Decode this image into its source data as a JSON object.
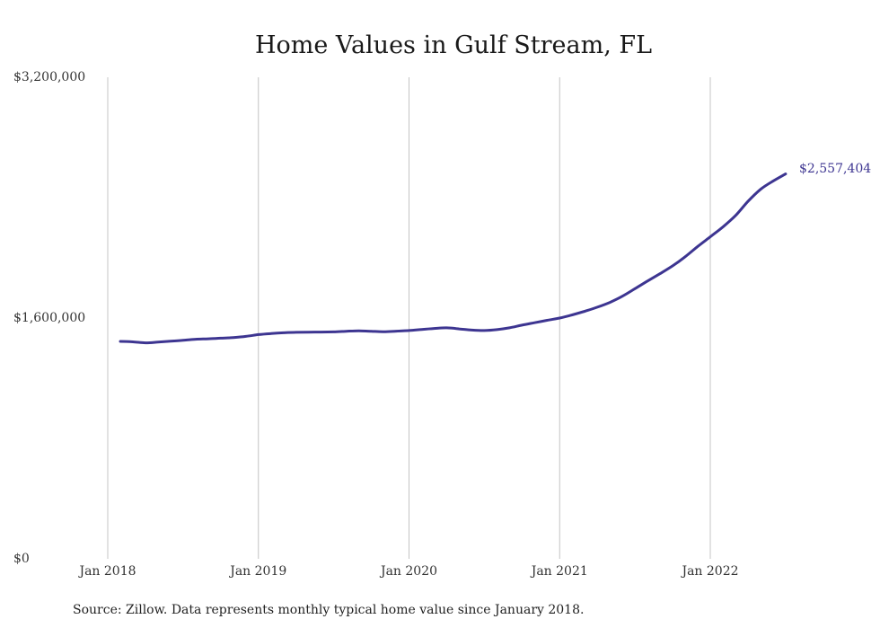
{
  "chart_data": {
    "type": "line",
    "title": "Home Values in Gulf Stream, FL",
    "xlabel": "",
    "ylabel": "",
    "y_ticks": [
      "$0",
      "$1,600,000",
      "$3,200,000"
    ],
    "y_tick_values": [
      0,
      1600000,
      3200000
    ],
    "ylim": [
      0,
      3200000
    ],
    "x_ticks": [
      "Jan 2018",
      "Jan 2019",
      "Jan 2020",
      "Jan 2021",
      "Jan 2022"
    ],
    "x_tick_dates": [
      "2018-01",
      "2019-01",
      "2020-01",
      "2021-01",
      "2022-01"
    ],
    "grid": "vertical",
    "color": "#3d3591",
    "end_label": "$2,557,404",
    "series": [
      {
        "x": [
          "2018-02",
          "2018-03",
          "2018-04",
          "2018-05",
          "2018-06",
          "2018-07",
          "2018-08",
          "2018-09",
          "2018-10",
          "2018-11",
          "2018-12",
          "2019-01",
          "2019-02",
          "2019-03",
          "2019-04",
          "2019-05",
          "2019-06",
          "2019-07",
          "2019-08",
          "2019-09",
          "2019-10",
          "2019-11",
          "2019-12",
          "2020-01",
          "2020-02",
          "2020-03",
          "2020-04",
          "2020-05",
          "2020-06",
          "2020-07",
          "2020-08",
          "2020-09",
          "2020-10",
          "2020-11",
          "2020-12",
          "2021-01",
          "2021-02",
          "2021-03",
          "2021-04",
          "2021-05",
          "2021-06",
          "2021-07",
          "2021-08",
          "2021-09",
          "2021-10",
          "2021-11",
          "2021-12",
          "2022-01",
          "2022-02",
          "2022-03",
          "2022-04",
          "2022-05",
          "2022-06",
          "2022-07"
        ],
        "values": [
          1445000,
          1442000,
          1435000,
          1440000,
          1446000,
          1452000,
          1459000,
          1462000,
          1466000,
          1470000,
          1478000,
          1490000,
          1497000,
          1502000,
          1505000,
          1506000,
          1507000,
          1508000,
          1512000,
          1515000,
          1512000,
          1509000,
          1513000,
          1517000,
          1524000,
          1531000,
          1535000,
          1528000,
          1520000,
          1517000,
          1523000,
          1535000,
          1553000,
          1569000,
          1585000,
          1600000,
          1621000,
          1645000,
          1672000,
          1704000,
          1745000,
          1795000,
          1846000,
          1895000,
          1947000,
          2007000,
          2076000,
          2140000,
          2205000,
          2280000,
          2375000,
          2455000,
          2510000,
          2557404
        ]
      }
    ]
  },
  "source_note": "Source: Zillow. Data represents monthly typical home value since January 2018."
}
